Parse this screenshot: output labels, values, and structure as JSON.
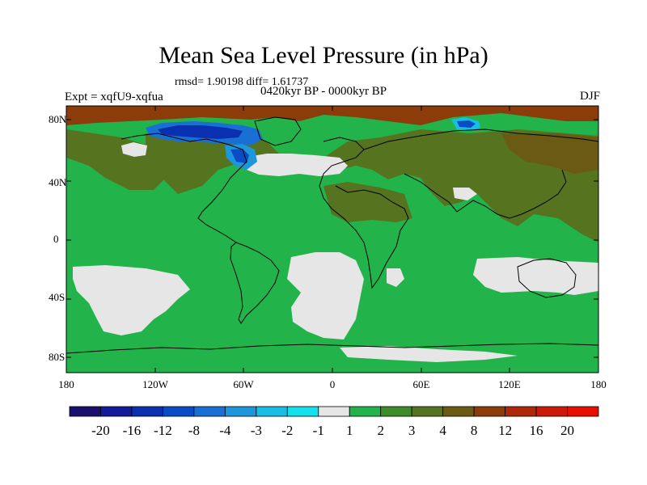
{
  "title": "Mean Sea Level Pressure (in hPa)",
  "stats": "rmsd= 1.90198 diff= 1.61737",
  "experiment": "Expt = xqfU9-xqfua",
  "period": "0420kyr BP - 0000kyr BP",
  "season": "DJF",
  "axes": {
    "y_labels": [
      "80N",
      "40N",
      "0",
      "40S",
      "80S"
    ],
    "x_labels": [
      "180",
      "120W",
      "60W",
      "0",
      "60E",
      "120E",
      "180"
    ]
  },
  "colorbar": {
    "labels": [
      "-20",
      "-16",
      "-12",
      "-8",
      "-4",
      "-3",
      "-2",
      "-1",
      "1",
      "2",
      "3",
      "4",
      "8",
      "12",
      "16",
      "20"
    ],
    "colors": [
      "#1a0f6e",
      "#141a99",
      "#0a30b0",
      "#0a4cc4",
      "#1a6fd4",
      "#1e96dc",
      "#19bde6",
      "#14e1ec",
      "#e6e6e6",
      "#22b34a",
      "#3d8c2a",
      "#567320",
      "#6b5a14",
      "#8c3c0a",
      "#b0280a",
      "#cc1a0a",
      "#e60f00"
    ]
  },
  "colors": {
    "ocean_default": "#22b34a",
    "land_olive": "#567320",
    "gray": "#e6e6e6",
    "dark_green": "#3d8c2a",
    "brown": "#8c3c0a",
    "coast": "#000000"
  }
}
